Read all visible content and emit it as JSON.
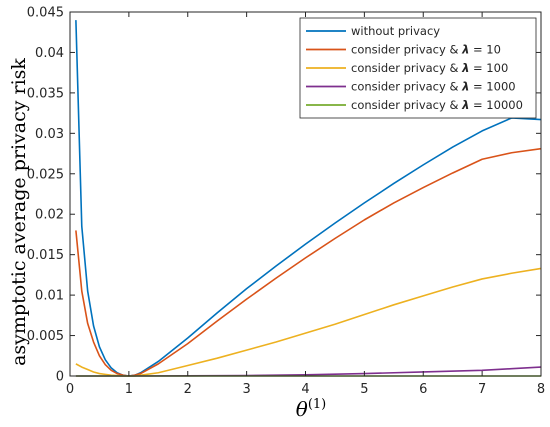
{
  "chart_data": {
    "type": "line",
    "xlabel": "θ",
    "xlabel_sup": "(1)",
    "ylabel": "asymptotic average privacy risk",
    "xlim": [
      0,
      8
    ],
    "ylim": [
      0,
      0.045
    ],
    "grid": false,
    "legend_position": "top-right",
    "x_ticks": [
      "0",
      "1",
      "2",
      "3",
      "4",
      "5",
      "6",
      "7",
      "8"
    ],
    "y_ticks": [
      "0",
      "0.005",
      "0.01",
      "0.015",
      "0.02",
      "0.025",
      "0.03",
      "0.035",
      "0.04",
      "0.045"
    ],
    "x_tick_values": [
      0,
      1,
      2,
      3,
      4,
      5,
      6,
      7,
      8
    ],
    "y_tick_values": [
      0,
      0.005,
      0.01,
      0.015,
      0.02,
      0.025,
      0.03,
      0.035,
      0.04,
      0.045
    ],
    "series": [
      {
        "name": "without privacy",
        "legend_prefix": "without privacy",
        "legend_lambda": "",
        "color": "#0072BD",
        "x": [
          0.1,
          0.2,
          0.3,
          0.4,
          0.5,
          0.6,
          0.7,
          0.8,
          0.9,
          1.0,
          1.1,
          1.2,
          1.5,
          2,
          2.5,
          3,
          3.5,
          4,
          4.5,
          5,
          5.5,
          6,
          6.5,
          7,
          7.5,
          8
        ],
        "y": [
          0.044,
          0.0185,
          0.0105,
          0.0062,
          0.0036,
          0.002,
          0.001,
          0.0004,
          0.0001,
          0.0,
          0.0001,
          0.0004,
          0.0018,
          0.0047,
          0.0078,
          0.0108,
          0.0136,
          0.0163,
          0.0189,
          0.0214,
          0.0238,
          0.0261,
          0.0283,
          0.0303,
          0.0319,
          0.0317
        ]
      },
      {
        "name": "consider privacy & λ = 10",
        "legend_prefix": "consider privacy & ",
        "legend_lambda": "λ",
        "legend_suffix": " = 10",
        "color": "#D95319",
        "x": [
          0.1,
          0.2,
          0.3,
          0.4,
          0.5,
          0.6,
          0.7,
          0.8,
          0.9,
          1.0,
          1.1,
          1.2,
          1.5,
          2,
          2.5,
          3,
          3.5,
          4,
          4.5,
          5,
          5.5,
          6,
          6.5,
          7,
          7.5,
          8
        ],
        "y": [
          0.018,
          0.0105,
          0.0065,
          0.0042,
          0.0025,
          0.0014,
          0.0007,
          0.0003,
          0.0001,
          0.0,
          0.0001,
          0.0003,
          0.0015,
          0.004,
          0.0068,
          0.0095,
          0.0121,
          0.0146,
          0.017,
          0.0193,
          0.0214,
          0.0233,
          0.0251,
          0.0268,
          0.0276,
          0.0281
        ]
      },
      {
        "name": "consider privacy & λ = 100",
        "legend_prefix": "consider privacy & ",
        "legend_lambda": "λ",
        "legend_suffix": " = 100",
        "color": "#EDB120",
        "x": [
          0.1,
          0.2,
          0.3,
          0.4,
          0.5,
          0.6,
          0.7,
          0.8,
          0.9,
          1.0,
          1.1,
          1.2,
          1.5,
          2,
          2.5,
          3,
          3.5,
          4,
          4.5,
          5,
          5.5,
          6,
          6.5,
          7,
          7.5,
          8
        ],
        "y": [
          0.0015,
          0.0011,
          0.0008,
          0.0005,
          0.0003,
          0.0002,
          0.0001,
          5e-05,
          0.0,
          0.0,
          0.0,
          0.0001,
          0.0004,
          0.0013,
          0.0022,
          0.0032,
          0.0042,
          0.0053,
          0.0064,
          0.0076,
          0.0088,
          0.0099,
          0.011,
          0.012,
          0.0127,
          0.0133
        ]
      },
      {
        "name": "consider privacy & λ = 1000",
        "legend_prefix": "consider privacy & ",
        "legend_lambda": "λ",
        "legend_suffix": " = 1000",
        "color": "#7E2F8E",
        "x": [
          0.1,
          1.0,
          2,
          3,
          4,
          5,
          6,
          7,
          7.5,
          8
        ],
        "y": [
          0.0,
          0.0,
          2e-05,
          6e-05,
          0.00015,
          0.0003,
          0.0005,
          0.0007,
          0.0009,
          0.0011
        ]
      },
      {
        "name": "consider privacy & λ = 10000",
        "legend_prefix": "consider privacy & ",
        "legend_lambda": "λ",
        "legend_suffix": " = 10000",
        "color": "#77AC30",
        "x": [
          0.1,
          2,
          4,
          6,
          8
        ],
        "y": [
          0.0,
          0.0,
          0.0,
          0.0,
          0.0
        ]
      }
    ]
  }
}
